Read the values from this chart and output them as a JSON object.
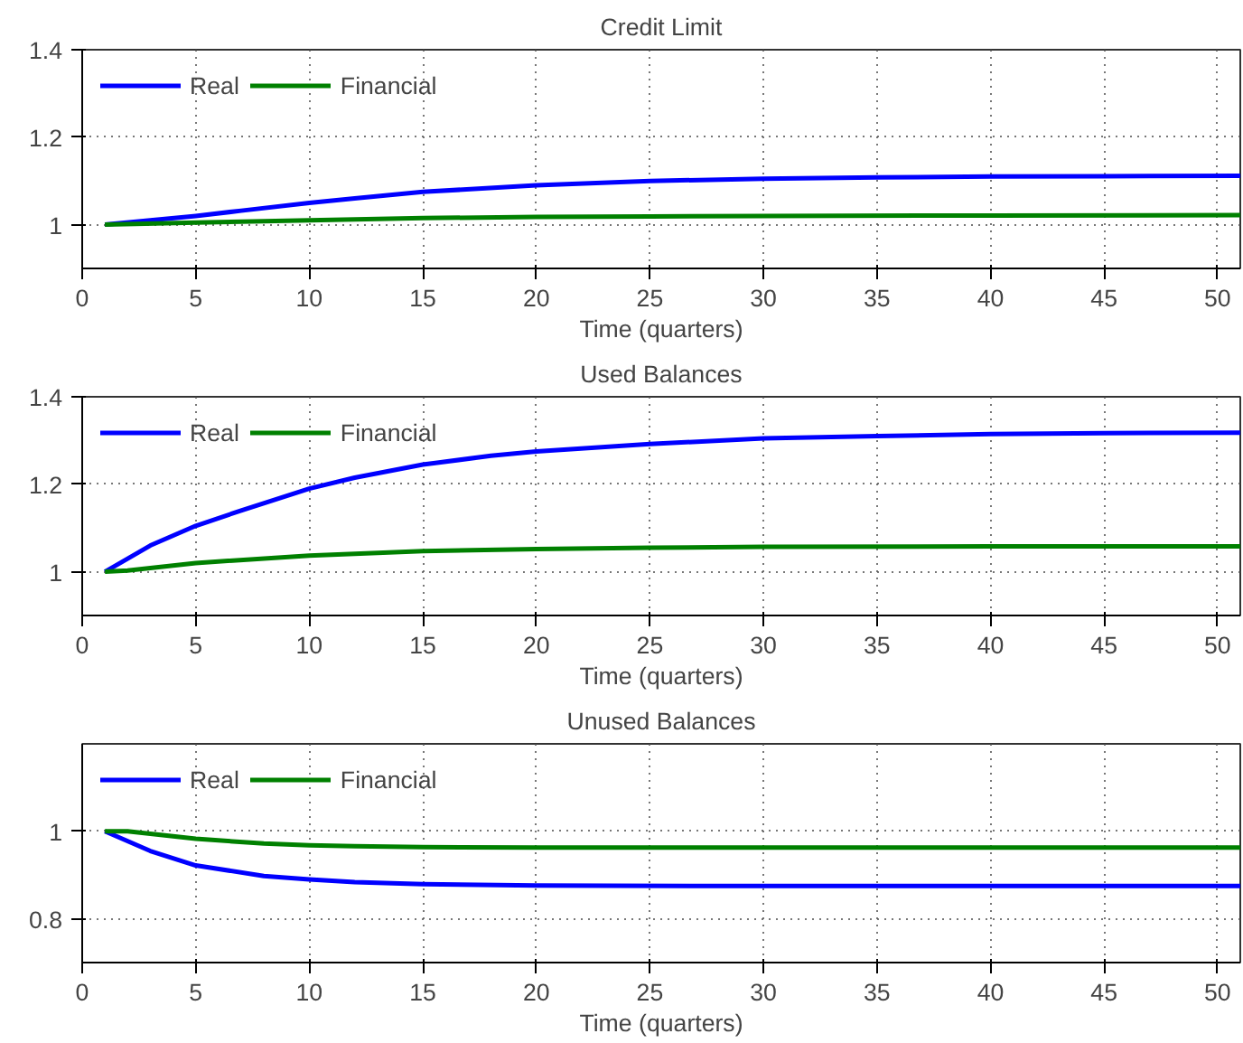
{
  "chart_data": [
    {
      "type": "line",
      "title": "Credit Limit",
      "xlabel": "Time (quarters)",
      "xlim": [
        0,
        51
      ],
      "xticks": [
        0,
        5,
        10,
        15,
        20,
        25,
        30,
        35,
        40,
        45,
        50
      ],
      "ylim": [
        0.9,
        1.4
      ],
      "yticks": [
        1,
        1.2,
        1.4
      ],
      "grid": true,
      "legend": "top left",
      "line_style": "solid",
      "series": [
        {
          "name": "Real",
          "color": "#0000ff",
          "x": [
            1,
            3,
            5,
            7,
            10,
            12,
            15,
            20,
            25,
            30,
            35,
            40,
            45,
            51
          ],
          "values": [
            1,
            1.01,
            1.02,
            1.032,
            1.05,
            1.06,
            1.075,
            1.09,
            1.1,
            1.105,
            1.108,
            1.11,
            1.111,
            1.112
          ]
        },
        {
          "name": "Financial",
          "color": "#008000",
          "x": [
            1,
            5,
            10,
            15,
            20,
            25,
            30,
            40,
            51
          ],
          "values": [
            1,
            1.005,
            1.01,
            1.015,
            1.018,
            1.019,
            1.02,
            1.021,
            1.022
          ]
        }
      ]
    },
    {
      "type": "line",
      "title": "Used Balances",
      "xlabel": "Time (quarters)",
      "xlim": [
        0,
        51
      ],
      "xticks": [
        0,
        5,
        10,
        15,
        20,
        25,
        30,
        35,
        40,
        45,
        50
      ],
      "ylim": [
        0.9,
        1.4
      ],
      "yticks": [
        1,
        1.2,
        1.4
      ],
      "grid": true,
      "legend": "top left",
      "line_style": "solid",
      "series": [
        {
          "name": "Real",
          "color": "#0000ff",
          "x": [
            1,
            3,
            5,
            7,
            10,
            12,
            15,
            18,
            20,
            25,
            30,
            35,
            40,
            45,
            51
          ],
          "values": [
            1,
            1.06,
            1.105,
            1.14,
            1.19,
            1.215,
            1.245,
            1.265,
            1.275,
            1.292,
            1.305,
            1.31,
            1.315,
            1.317,
            1.318
          ]
        },
        {
          "name": "Financial",
          "color": "#008000",
          "x": [
            1,
            2,
            5,
            10,
            15,
            20,
            25,
            30,
            40,
            51
          ],
          "values": [
            1,
            1.003,
            1.02,
            1.037,
            1.047,
            1.052,
            1.055,
            1.057,
            1.058,
            1.058
          ]
        }
      ]
    },
    {
      "type": "line",
      "title": "Unused Balances",
      "xlabel": "Time (quarters)",
      "xlim": [
        0,
        51
      ],
      "xticks": [
        0,
        5,
        10,
        15,
        20,
        25,
        30,
        35,
        40,
        45,
        50
      ],
      "ylim": [
        0.7,
        1.2
      ],
      "yticks": [
        0.8,
        1
      ],
      "grid": true,
      "legend": "top left",
      "line_style": "solid",
      "series": [
        {
          "name": "Real",
          "color": "#0000ff",
          "x": [
            1,
            3,
            5,
            8,
            10,
            12,
            15,
            20,
            30,
            40,
            51
          ],
          "values": [
            1,
            0.955,
            0.922,
            0.898,
            0.89,
            0.884,
            0.879,
            0.876,
            0.875,
            0.875,
            0.875
          ]
        },
        {
          "name": "Financial",
          "color": "#008000",
          "x": [
            1,
            2,
            5,
            8,
            10,
            12,
            15,
            20,
            30,
            40,
            51
          ],
          "values": [
            1,
            1.0,
            0.983,
            0.972,
            0.968,
            0.966,
            0.964,
            0.963,
            0.963,
            0.963,
            0.963
          ]
        }
      ]
    }
  ]
}
